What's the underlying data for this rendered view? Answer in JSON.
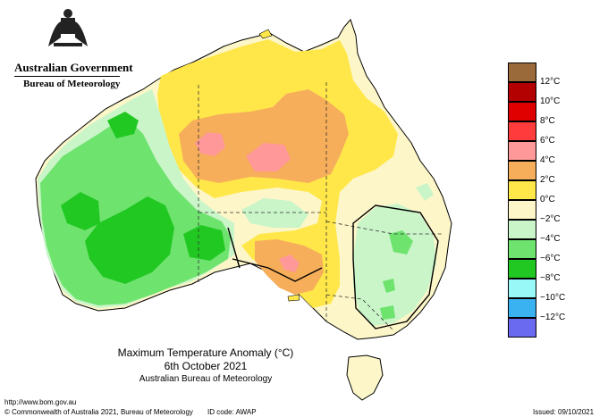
{
  "header": {
    "government": "Australian Government",
    "bureau": "Bureau of Meteorology"
  },
  "legend": {
    "items": [
      {
        "label": "",
        "color": "#9a6a3a"
      },
      {
        "label": "12°C",
        "color": "#b30000"
      },
      {
        "label": "10°C",
        "color": "#e00000"
      },
      {
        "label": "8°C",
        "color": "#ff3b3b"
      },
      {
        "label": "6°C",
        "color": "#ff9898"
      },
      {
        "label": "4°C",
        "color": "#f6ae5a"
      },
      {
        "label": "2°C",
        "color": "#ffe74a"
      },
      {
        "label": "0°C",
        "color": "#fdf6c8"
      },
      {
        "label": "−2°C",
        "color": "#c9f5c9"
      },
      {
        "label": "−4°C",
        "color": "#6ee36e"
      },
      {
        "label": "−6°C",
        "color": "#22c822"
      },
      {
        "label": "−8°C",
        "color": "#98f8f8"
      },
      {
        "label": "−10°C",
        "color": "#3ab2f2"
      },
      {
        "label": "−12°C",
        "color": "#6a6af0"
      },
      {
        "label": "",
        "color": "#0000ff"
      }
    ]
  },
  "map_title": {
    "line1": "Maximum Temperature Anomaly (°C)",
    "line2": "6th October 2021",
    "line3": "Australian Bureau of Meteorology"
  },
  "footer": {
    "url": "http://www.bom.gov.au",
    "copyright": "© Commonwealth of Australia 2021, Bureau of Meteorology",
    "id_code": "ID code: AWAP",
    "issued": "Issued: 09/10/2021"
  }
}
